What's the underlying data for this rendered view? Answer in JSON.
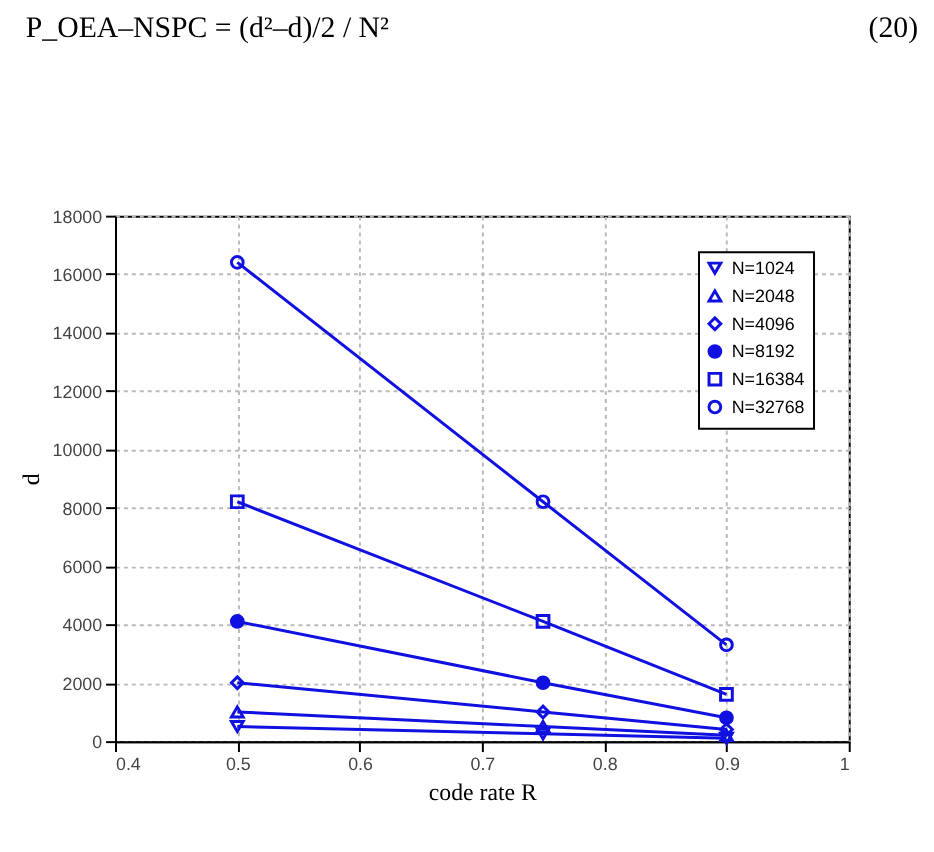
{
  "chart_data": {
    "type": "line",
    "xlabel": "code rate R",
    "ylabel": "d",
    "annotations": [
      "P_OEA–NSPC = (d²–d)/2 / N²",
      "(20)"
    ],
    "x": [
      0.5,
      0.75,
      0.9
    ],
    "xlim": [
      0.4,
      1
    ],
    "xticks": [
      0.4,
      0.5,
      0.6,
      0.7,
      0.8,
      0.9,
      1
    ],
    "ylim": [
      0,
      18000
    ],
    "yticks": [
      0,
      2000,
      4000,
      6000,
      8000,
      10000,
      12000,
      14000,
      16000,
      18000
    ],
    "grid": true,
    "legend": "top right",
    "series": [
      {
        "name": "N=1024",
        "color": "#1010e0",
        "marker": "triangle-down",
        "values": [
          500,
          250,
          100
        ]
      },
      {
        "name": "N=2048",
        "color": "#1010e0",
        "marker": "triangle-up",
        "values": [
          1000,
          500,
          200
        ]
      },
      {
        "name": "N=4096",
        "color": "#1010e0",
        "marker": "diamond",
        "values": [
          2000,
          1000,
          400
        ]
      },
      {
        "name": "N=8192",
        "color": "#1010e0",
        "marker": "dot",
        "values": [
          4100,
          2000,
          800
        ]
      },
      {
        "name": "N=16384",
        "color": "#1010e0",
        "marker": "square",
        "values": [
          8200,
          4100,
          1600
        ]
      },
      {
        "name": "N=32768",
        "color": "#1010e0",
        "marker": "circle",
        "values": [
          16400,
          8200,
          3300
        ]
      }
    ]
  }
}
